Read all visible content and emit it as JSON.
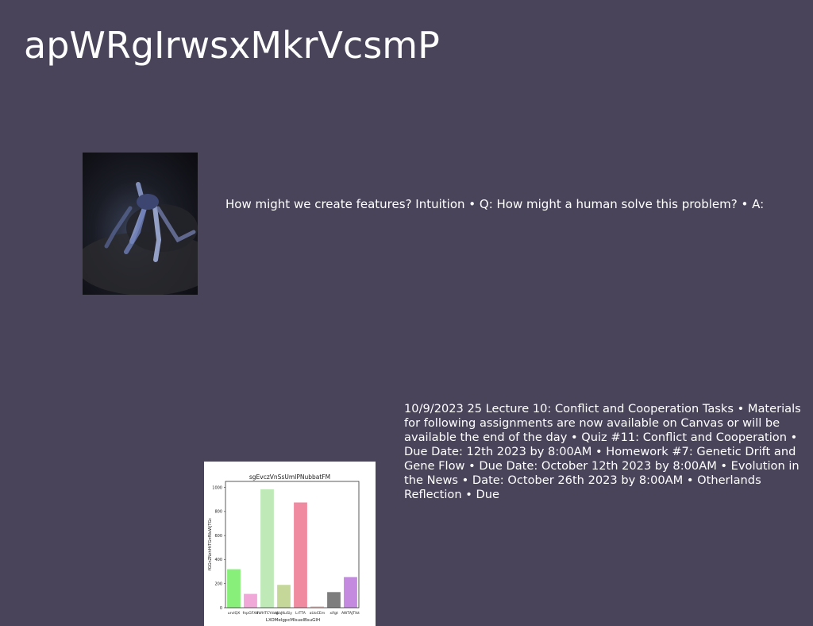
{
  "slide": {
    "title": "apWRgIrwsxMkrVcsmP",
    "text_block_1": "How might we create features? Intuition • Q: How might a human solve this problem? • A:",
    "text_block_2": "10/9/2023 25 Lecture 10: Conflict and Cooperation Tasks • Materials for following assignments are now available on Canvas or will be available the end of the day • Quiz #11: Conflict and Cooperation • Due Date: 12th 2023 by 8:00AM • Homework #7: Genetic Drift and Gene Flow • Due Date: October 12th 2023 by 8:00AM • Evolution in the News • Date: October 26th 2023 by 8:00AM • Otherlands Reflection • Due"
  },
  "chart_data": {
    "type": "bar",
    "title": "sgEvczVnSsUmIPNubbatFM",
    "xlabel": "LXOMelgpcMIsuelBsuGIH",
    "ylabel": "fGGnZNzhHtTGnfNuWjTGc",
    "categories": [
      "urvlQX",
      "fnpGFXd",
      "IIWHTCYdag",
      "WaJKuSiy",
      "LrTTA",
      "aUoCEm",
      "xifgt",
      "AWTAJTlkt"
    ],
    "values": [
      320,
      115,
      985,
      190,
      875,
      12,
      130,
      255
    ],
    "colors": [
      "#88f07a",
      "#f0a8d8",
      "#bfeab8",
      "#c5d89a",
      "#f08aa0",
      "#f4c6c6",
      "#7d7d7d",
      "#c48ae0"
    ],
    "ylim": [
      0,
      1050
    ],
    "yticks": [
      0,
      200,
      400,
      600,
      800,
      1000
    ],
    "grid": false
  }
}
